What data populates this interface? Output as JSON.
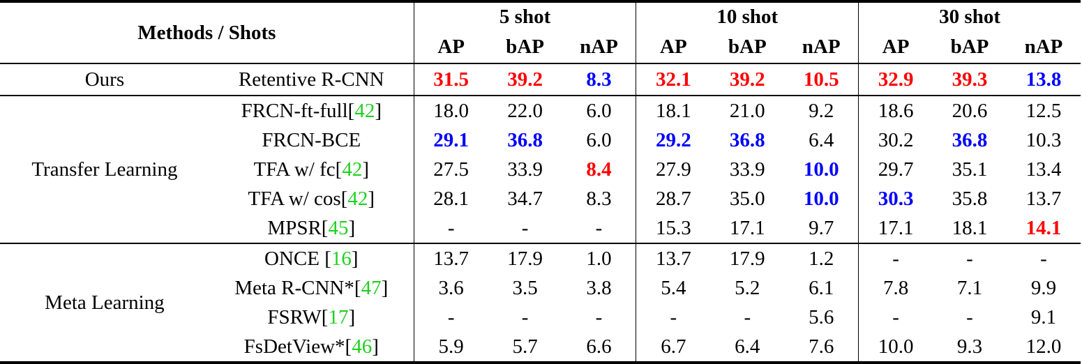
{
  "header": {
    "methods_label": "Methods / Shots",
    "shot_groups": [
      "5 shot",
      "10 shot",
      "30 shot"
    ],
    "metrics": [
      "AP",
      "bAP",
      "nAP"
    ]
  },
  "colors": {
    "best": "#ff0000",
    "second": "#0000ff",
    "citation": "#1fd01f"
  },
  "rows": [
    {
      "category": "Ours",
      "method": "Retentive R-CNN",
      "cite": "",
      "values": [
        {
          "v": "31.5",
          "s": "red"
        },
        {
          "v": "39.2",
          "s": "red"
        },
        {
          "v": "8.3",
          "s": "blue"
        },
        {
          "v": "32.1",
          "s": "red"
        },
        {
          "v": "39.2",
          "s": "red"
        },
        {
          "v": "10.5",
          "s": "red"
        },
        {
          "v": "32.9",
          "s": "red"
        },
        {
          "v": "39.3",
          "s": "red"
        },
        {
          "v": "13.8",
          "s": "blue"
        }
      ]
    },
    {
      "category": "Transfer Learning",
      "method": "FRCN-ft-full",
      "cite": "42",
      "values": [
        {
          "v": "18.0"
        },
        {
          "v": "22.0"
        },
        {
          "v": "6.0"
        },
        {
          "v": "18.1"
        },
        {
          "v": "21.0"
        },
        {
          "v": "9.2"
        },
        {
          "v": "18.6"
        },
        {
          "v": "20.6"
        },
        {
          "v": "12.5"
        }
      ]
    },
    {
      "category": "Transfer Learning",
      "method": "FRCN-BCE",
      "cite": "",
      "values": [
        {
          "v": "29.1",
          "s": "blue"
        },
        {
          "v": "36.8",
          "s": "blue"
        },
        {
          "v": "6.0"
        },
        {
          "v": "29.2",
          "s": "blue"
        },
        {
          "v": "36.8",
          "s": "blue"
        },
        {
          "v": "6.4"
        },
        {
          "v": "30.2"
        },
        {
          "v": "36.8",
          "s": "blue"
        },
        {
          "v": "10.3"
        }
      ]
    },
    {
      "category": "Transfer Learning",
      "method": "TFA w/ fc",
      "cite": "42",
      "values": [
        {
          "v": "27.5"
        },
        {
          "v": "33.9"
        },
        {
          "v": "8.4",
          "s": "red"
        },
        {
          "v": "27.9"
        },
        {
          "v": "33.9"
        },
        {
          "v": "10.0",
          "s": "blue"
        },
        {
          "v": "29.7"
        },
        {
          "v": "35.1"
        },
        {
          "v": "13.4"
        }
      ]
    },
    {
      "category": "Transfer Learning",
      "method": "TFA w/ cos",
      "cite": "42",
      "values": [
        {
          "v": "28.1"
        },
        {
          "v": "34.7"
        },
        {
          "v": "8.3"
        },
        {
          "v": "28.7"
        },
        {
          "v": "35.0"
        },
        {
          "v": "10.0",
          "s": "blue"
        },
        {
          "v": "30.3",
          "s": "blue"
        },
        {
          "v": "35.8"
        },
        {
          "v": "13.7"
        }
      ]
    },
    {
      "category": "Transfer Learning",
      "method": "MPSR",
      "cite": "45",
      "values": [
        {
          "v": "-"
        },
        {
          "v": "-"
        },
        {
          "v": "-"
        },
        {
          "v": "15.3"
        },
        {
          "v": "17.1"
        },
        {
          "v": "9.7"
        },
        {
          "v": "17.1"
        },
        {
          "v": "18.1"
        },
        {
          "v": "14.1",
          "s": "red"
        }
      ]
    },
    {
      "category": "Meta Learning",
      "method": "ONCE ",
      "cite": "16",
      "values": [
        {
          "v": "13.7"
        },
        {
          "v": "17.9"
        },
        {
          "v": "1.0"
        },
        {
          "v": "13.7"
        },
        {
          "v": "17.9"
        },
        {
          "v": "1.2"
        },
        {
          "v": "-"
        },
        {
          "v": "-"
        },
        {
          "v": "-"
        }
      ]
    },
    {
      "category": "Meta Learning",
      "method": "Meta R-CNN*",
      "cite": "47",
      "values": [
        {
          "v": "3.6"
        },
        {
          "v": "3.5"
        },
        {
          "v": "3.8"
        },
        {
          "v": "5.4"
        },
        {
          "v": "5.2"
        },
        {
          "v": "6.1"
        },
        {
          "v": "7.8"
        },
        {
          "v": "7.1"
        },
        {
          "v": "9.9"
        }
      ]
    },
    {
      "category": "Meta Learning",
      "method": "FSRW",
      "cite": "17",
      "values": [
        {
          "v": "-"
        },
        {
          "v": "-"
        },
        {
          "v": "-"
        },
        {
          "v": "-"
        },
        {
          "v": "-"
        },
        {
          "v": "5.6"
        },
        {
          "v": "-"
        },
        {
          "v": "-"
        },
        {
          "v": "9.1"
        }
      ]
    },
    {
      "category": "Meta Learning",
      "method": "FsDetView*",
      "cite": "46",
      "values": [
        {
          "v": "5.9"
        },
        {
          "v": "5.7"
        },
        {
          "v": "6.6"
        },
        {
          "v": "6.7"
        },
        {
          "v": "6.4"
        },
        {
          "v": "7.6"
        },
        {
          "v": "10.0"
        },
        {
          "v": "9.3"
        },
        {
          "v": "12.0"
        }
      ]
    }
  ],
  "groups": [
    {
      "label": "Ours",
      "rows": 1
    },
    {
      "label": "Transfer Learning",
      "rows": 5
    },
    {
      "label": "Meta Learning",
      "rows": 4
    }
  ]
}
